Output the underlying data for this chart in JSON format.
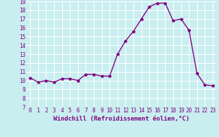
{
  "x": [
    0,
    1,
    2,
    3,
    4,
    5,
    6,
    7,
    8,
    9,
    10,
    11,
    12,
    13,
    14,
    15,
    16,
    17,
    18,
    19,
    20,
    21,
    22,
    23
  ],
  "y": [
    10.3,
    9.8,
    10.0,
    9.8,
    10.2,
    10.2,
    10.0,
    10.7,
    10.7,
    10.5,
    10.5,
    13.0,
    14.5,
    15.6,
    17.0,
    18.4,
    18.8,
    18.8,
    16.8,
    17.0,
    15.7,
    10.8,
    9.5,
    9.4
  ],
  "line_color": "#800080",
  "marker": "*",
  "marker_size": 3,
  "bg_color": "#c8eef0",
  "grid_color": "#ffffff",
  "xlabel": "Windchill (Refroidissement éolien,°C)",
  "ylim": [
    7,
    19
  ],
  "xlim_min": -0.5,
  "xlim_max": 23.5,
  "yticks": [
    7,
    8,
    9,
    10,
    11,
    12,
    13,
    14,
    15,
    16,
    17,
    18,
    19
  ],
  "xticks": [
    0,
    1,
    2,
    3,
    4,
    5,
    6,
    7,
    8,
    9,
    10,
    11,
    12,
    13,
    14,
    15,
    16,
    17,
    18,
    19,
    20,
    21,
    22,
    23
  ],
  "xlabel_color": "#800080",
  "tick_color": "#800080",
  "label_fontsize": 6.5,
  "tick_fontsize": 5.5,
  "linewidth": 1.0
}
